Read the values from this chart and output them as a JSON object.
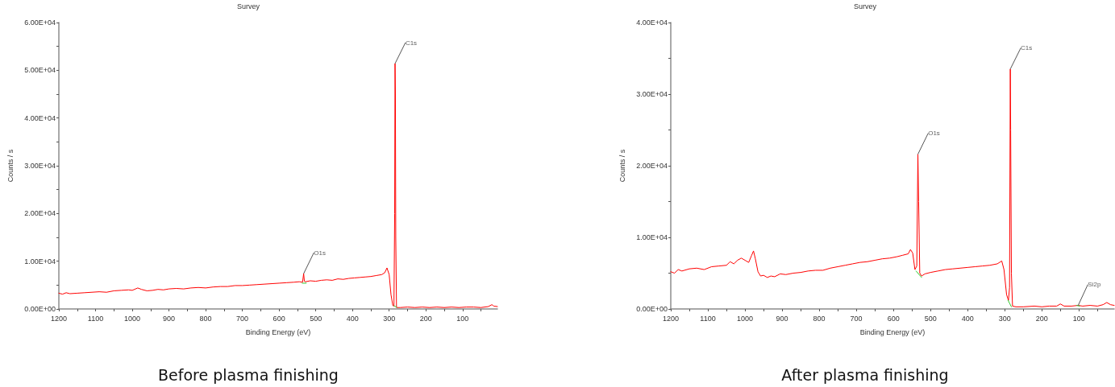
{
  "chart_data": [
    {
      "type": "line",
      "title": "Survey",
      "xlabel": "Binding Energy (eV)",
      "ylabel": "Counts / s",
      "marker": "none",
      "xlim": [
        1200,
        5
      ],
      "xticks": [
        1200,
        {
          "value": 1150,
          "label": null
        },
        1100,
        {
          "value": 1050,
          "label": null
        },
        1000,
        {
          "value": 950,
          "label": null
        },
        900,
        {
          "value": 850,
          "label": null
        },
        800,
        {
          "value": 750,
          "label": null
        },
        700,
        {
          "value": 650,
          "label": null
        },
        600,
        {
          "value": 550,
          "label": null
        },
        500,
        {
          "value": 450,
          "label": null
        },
        400,
        {
          "value": 350,
          "label": null
        },
        300,
        {
          "value": 250,
          "label": null
        },
        200,
        {
          "value": 150,
          "label": null
        },
        100,
        {
          "value": 50,
          "label": null
        }
      ],
      "ylim": [
        0,
        60000
      ],
      "yticks": [
        {
          "value": 0,
          "label": "0.00E+00"
        },
        {
          "value": 5000,
          "label": null
        },
        {
          "value": 10000,
          "label": "1.00E+04"
        },
        {
          "value": 15000,
          "label": null
        },
        {
          "value": 20000,
          "label": "2.00E+04"
        },
        {
          "value": 25000,
          "label": null
        },
        {
          "value": 30000,
          "label": "3.00E+04"
        },
        {
          "value": 35000,
          "label": null
        },
        {
          "value": 40000,
          "label": "4.00E+04"
        },
        {
          "value": 45000,
          "label": null
        },
        {
          "value": 50000,
          "label": "5.00E+04"
        },
        {
          "value": 55000,
          "label": null
        },
        {
          "value": 60000,
          "label": "6.00E+04"
        }
      ],
      "series": [
        {
          "color": "#ff0000",
          "x": [
            1200,
            1190,
            1180,
            1170,
            1150,
            1130,
            1110,
            1090,
            1070,
            1050,
            1030,
            1010,
            1000,
            985,
            975,
            960,
            945,
            930,
            915,
            900,
            880,
            860,
            840,
            820,
            800,
            780,
            760,
            740,
            720,
            700,
            680,
            660,
            640,
            620,
            600,
            580,
            560,
            545,
            536,
            533,
            531,
            528,
            515,
            500,
            485,
            470,
            455,
            440,
            425,
            410,
            395,
            380,
            365,
            350,
            335,
            320,
            312,
            306,
            300,
            295,
            290,
            287,
            285,
            284,
            283,
            282,
            280,
            270,
            250,
            230,
            210,
            190,
            170,
            150,
            130,
            110,
            90,
            70,
            50,
            30,
            20,
            15,
            5
          ],
          "values": [
            3300,
            3100,
            3400,
            3200,
            3300,
            3400,
            3500,
            3600,
            3500,
            3800,
            3900,
            4000,
            3900,
            4400,
            4100,
            3800,
            3900,
            4100,
            4000,
            4200,
            4300,
            4200,
            4400,
            4500,
            4400,
            4600,
            4700,
            4700,
            4900,
            4900,
            5000,
            5100,
            5200,
            5300,
            5400,
            5500,
            5600,
            5700,
            5600,
            7400,
            5800,
            5700,
            5900,
            5800,
            6000,
            6100,
            6000,
            6300,
            6200,
            6400,
            6500,
            6600,
            6700,
            6800,
            7000,
            7200,
            7600,
            8600,
            7200,
            3000,
            700,
            600,
            20000,
            51400,
            45000,
            15000,
            300,
            300,
            400,
            300,
            400,
            300,
            400,
            300,
            400,
            300,
            400,
            400,
            300,
            500,
            900,
            600,
            500
          ]
        },
        {
          "color": "#33cc33",
          "x": [
            537,
            526
          ],
          "values": [
            5400,
            5400
          ]
        },
        {
          "color": "#33cc33",
          "x": [
            287,
            279
          ],
          "values": [
            700,
            300
          ]
        }
      ],
      "annotations": [
        {
          "text": "C1s",
          "x": 284,
          "y": 51400
        },
        {
          "text": "O1s",
          "x": 533,
          "y": 7400
        },
        "Before plasma finishing"
      ]
    },
    {
      "type": "line",
      "title": "Survey",
      "xlabel": "Binding Energy (eV)",
      "ylabel": "Counts / s",
      "marker": "none",
      "xlim": [
        1200,
        5
      ],
      "xticks": [
        1200,
        {
          "value": 1150,
          "label": null
        },
        1100,
        {
          "value": 1050,
          "label": null
        },
        1000,
        {
          "value": 950,
          "label": null
        },
        900,
        {
          "value": 850,
          "label": null
        },
        800,
        {
          "value": 750,
          "label": null
        },
        700,
        {
          "value": 650,
          "label": null
        },
        600,
        {
          "value": 550,
          "label": null
        },
        500,
        {
          "value": 450,
          "label": null
        },
        400,
        {
          "value": 350,
          "label": null
        },
        300,
        {
          "value": 250,
          "label": null
        },
        200,
        {
          "value": 150,
          "label": null
        },
        100,
        {
          "value": 50,
          "label": null
        }
      ],
      "ylim": [
        0,
        40000
      ],
      "yticks": [
        {
          "value": 0,
          "label": "0.00E+00"
        },
        {
          "value": 5000,
          "label": null
        },
        {
          "value": 10000,
          "label": "1.00E+04"
        },
        {
          "value": 15000,
          "label": null
        },
        {
          "value": 20000,
          "label": "2.00E+04"
        },
        {
          "value": 25000,
          "label": null
        },
        {
          "value": 30000,
          "label": "3.00E+04"
        },
        {
          "value": 35000,
          "label": null
        },
        {
          "value": 40000,
          "label": "4.00E+04"
        }
      ],
      "series": [
        {
          "color": "#ff0000",
          "x": [
            1200,
            1190,
            1180,
            1170,
            1150,
            1130,
            1110,
            1090,
            1070,
            1050,
            1040,
            1030,
            1020,
            1010,
            1000,
            990,
            982,
            977,
            972,
            965,
            958,
            950,
            940,
            930,
            920,
            905,
            890,
            870,
            850,
            830,
            810,
            790,
            770,
            750,
            730,
            710,
            690,
            670,
            650,
            630,
            610,
            590,
            575,
            560,
            554,
            548,
            542,
            537,
            534,
            532,
            529,
            524,
            515,
            500,
            480,
            460,
            440,
            420,
            400,
            380,
            360,
            340,
            320,
            308,
            302,
            295,
            290,
            287,
            285,
            284,
            282,
            279,
            270,
            250,
            220,
            200,
            180,
            160,
            150,
            140,
            120,
            102,
            90,
            70,
            50,
            35,
            25,
            15,
            5
          ],
          "values": [
            5200,
            5000,
            5500,
            5300,
            5600,
            5700,
            5500,
            5900,
            6000,
            6100,
            6600,
            6300,
            6800,
            7100,
            6800,
            6500,
            7500,
            8100,
            7000,
            5200,
            4600,
            4700,
            4400,
            4600,
            4500,
            4900,
            4800,
            5000,
            5100,
            5300,
            5400,
            5400,
            5700,
            5900,
            6100,
            6300,
            6500,
            6600,
            6800,
            7000,
            7100,
            7300,
            7500,
            7700,
            8300,
            7800,
            5500,
            6000,
            21600,
            15000,
            5000,
            4600,
            4900,
            5100,
            5300,
            5500,
            5600,
            5700,
            5800,
            5900,
            6000,
            6100,
            6300,
            6700,
            5500,
            2000,
            1200,
            3000,
            33500,
            25000,
            5000,
            400,
            300,
            300,
            400,
            300,
            400,
            400,
            700,
            400,
            400,
            500,
            400,
            500,
            400,
            600,
            900,
            600,
            500
          ]
        },
        {
          "color": "#33cc33",
          "x": [
            539,
            524
          ],
          "values": [
            5300,
            4400
          ]
        },
        {
          "color": "#33cc33",
          "x": [
            291,
            282
          ],
          "values": [
            1200,
            300
          ]
        },
        {
          "color": "#33cc33",
          "x": [
            106,
            98
          ],
          "values": [
            500,
            400
          ]
        }
      ],
      "annotations": [
        {
          "text": "O1s",
          "x": 534,
          "y": 21600
        },
        {
          "text": "C1s",
          "x": 285,
          "y": 33500
        },
        {
          "text": "Si2p",
          "x": 102,
          "y": 500
        },
        "After plasma finishing"
      ]
    }
  ]
}
